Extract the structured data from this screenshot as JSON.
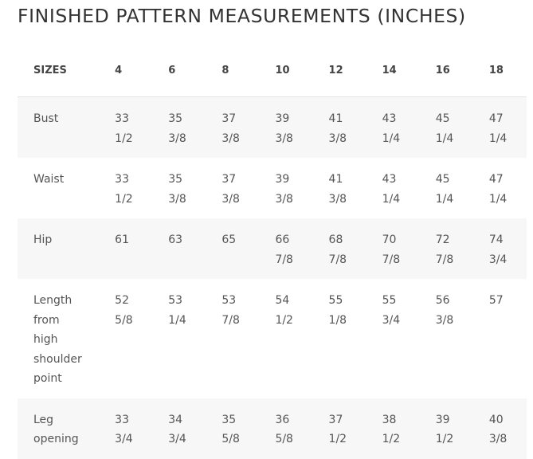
{
  "title": "FINISHED PATTERN MEASUREMENTS (INCHES)",
  "table": {
    "header_label": "SIZES",
    "sizes": [
      "4",
      "6",
      "8",
      "10",
      "12",
      "14",
      "16",
      "18"
    ],
    "rows": [
      {
        "label": "Bust",
        "values": [
          "33 1/2",
          "35 3/8",
          "37 3/8",
          "39 3/8",
          "41 3/8",
          "43 1/4",
          "45 1/4",
          "47 1/4"
        ]
      },
      {
        "label": "Waist",
        "values": [
          "33 1/2",
          "35 3/8",
          "37 3/8",
          "39 3/8",
          "41 3/8",
          "43 1/4",
          "45 1/4",
          "47 1/4"
        ]
      },
      {
        "label": "Hip",
        "values": [
          "61",
          "63",
          "65",
          "66 7/8",
          "68 7/8",
          "70 7/8",
          "72 7/8",
          "74 3/4"
        ]
      },
      {
        "label": "Length from high shoulder point",
        "values": [
          "52 5/8",
          "53 1/4",
          "53 7/8",
          "54 1/2",
          "55 1/8",
          "55 3/4",
          "56 3/8",
          "57"
        ]
      },
      {
        "label": "Leg opening",
        "values": [
          "33 3/4",
          "34 3/4",
          "35 5/8",
          "36 5/8",
          "37 1/2",
          "38 1/2",
          "39 1/2",
          "40 3/8"
        ]
      }
    ]
  }
}
